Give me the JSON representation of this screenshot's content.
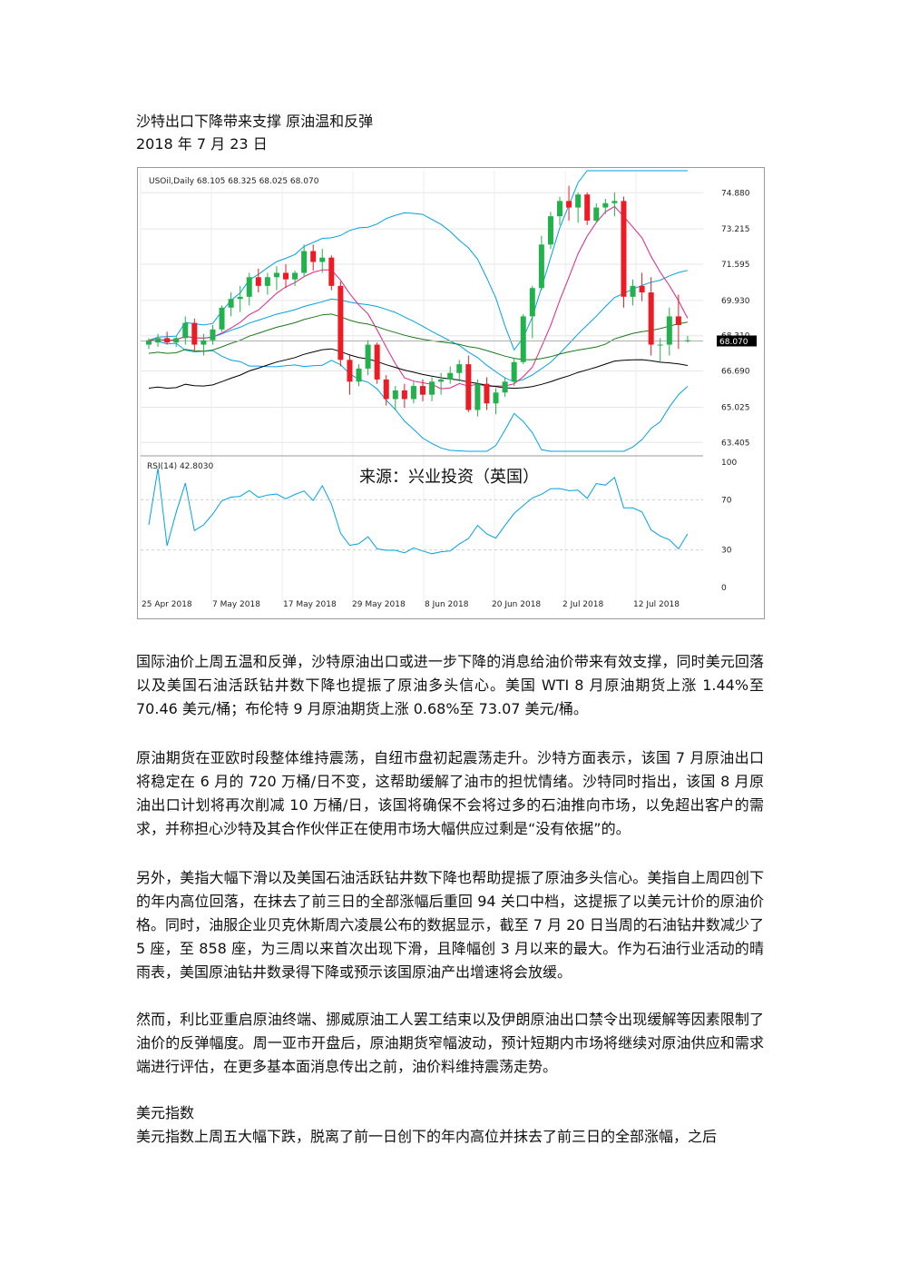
{
  "title": "沙特出口下降带来支撑 原油温和反弹",
  "date": "2018 年 7 月 23 日",
  "chart": {
    "header": "USOil,Daily  68.105 68.325 68.025 68.070",
    "source_note": "来源：兴业投资（英国）",
    "price_labels": [
      "74.880",
      "73.215",
      "71.595",
      "69.930",
      "68.310",
      "66.690",
      "65.025",
      "63.405"
    ],
    "current_price": "68.070",
    "rsi_header": "RSI(14) 42.8030",
    "rsi_labels": [
      "100",
      "70",
      "30",
      "0"
    ],
    "date_labels": [
      "25 Apr 2018",
      "7 May 2018",
      "17 May 2018",
      "29 May 2018",
      "8 Jun 2018",
      "20 Jun 2018",
      "2 Jul 2018",
      "12 Jul 2018"
    ],
    "colors": {
      "up": "#22b14c",
      "down": "#ed1c24",
      "bands": "#00a2e8",
      "ma_short": "#e0218a",
      "ma_mid": "#1a7a1a",
      "ma_long": "#000000",
      "rsi": "#00a2e8"
    }
  },
  "chart_data": {
    "type": "candlestick",
    "symbol": "USOil",
    "timeframe": "Daily",
    "ohlc_last": {
      "open": 68.105,
      "high": 68.325,
      "low": 68.025,
      "close": 68.07
    },
    "y_ticks": [
      74.88,
      73.215,
      71.595,
      69.93,
      68.31,
      66.69,
      65.025,
      63.405
    ],
    "ylim": [
      63.0,
      75.6
    ],
    "x_tick_labels": [
      "25 Apr 2018",
      "7 May 2018",
      "17 May 2018",
      "29 May 2018",
      "8 Jun 2018",
      "20 Jun 2018",
      "2 Jul 2018",
      "12 Jul 2018"
    ],
    "candles": [
      [
        67.9,
        68.2,
        67.7,
        68.1
      ],
      [
        68.0,
        68.4,
        67.8,
        68.2
      ],
      [
        68.2,
        68.5,
        67.9,
        68.0
      ],
      [
        68.0,
        68.3,
        67.8,
        68.2
      ],
      [
        68.2,
        69.2,
        67.9,
        68.9
      ],
      [
        68.9,
        69.1,
        67.6,
        67.9
      ],
      [
        67.9,
        68.4,
        67.4,
        68.1
      ],
      [
        68.1,
        68.8,
        67.9,
        68.6
      ],
      [
        68.6,
        69.7,
        68.5,
        69.6
      ],
      [
        69.6,
        70.3,
        69.2,
        70.0
      ],
      [
        70.0,
        70.6,
        69.4,
        70.1
      ],
      [
        70.1,
        71.2,
        69.7,
        71.0
      ],
      [
        71.0,
        71.4,
        70.3,
        70.6
      ],
      [
        70.6,
        71.2,
        70.2,
        71.0
      ],
      [
        71.0,
        71.5,
        70.4,
        71.2
      ],
      [
        71.2,
        71.6,
        70.5,
        70.9
      ],
      [
        70.9,
        71.3,
        70.6,
        71.2
      ],
      [
        71.2,
        72.5,
        71.0,
        72.2
      ],
      [
        72.2,
        72.5,
        71.3,
        71.7
      ],
      [
        71.7,
        72.3,
        71.2,
        71.9
      ],
      [
        71.9,
        72.0,
        70.4,
        70.6
      ],
      [
        70.6,
        70.8,
        66.9,
        67.2
      ],
      [
        67.2,
        67.4,
        65.6,
        66.2
      ],
      [
        66.2,
        67.0,
        66.0,
        66.8
      ],
      [
        66.8,
        68.1,
        66.5,
        67.9
      ],
      [
        67.9,
        68.0,
        66.1,
        66.3
      ],
      [
        66.3,
        66.5,
        65.1,
        65.4
      ],
      [
        65.4,
        66.0,
        64.9,
        65.8
      ],
      [
        65.8,
        66.1,
        65.0,
        65.4
      ],
      [
        65.4,
        66.2,
        65.2,
        66.0
      ],
      [
        66.0,
        66.3,
        65.3,
        65.6
      ],
      [
        65.6,
        66.4,
        65.3,
        66.2
      ],
      [
        66.2,
        66.6,
        65.6,
        66.3
      ],
      [
        66.3,
        66.9,
        66.1,
        66.6
      ],
      [
        66.6,
        67.2,
        66.2,
        67.0
      ],
      [
        67.0,
        67.4,
        64.8,
        64.9
      ],
      [
        64.9,
        66.3,
        64.6,
        66.1
      ],
      [
        66.1,
        66.4,
        64.9,
        65.2
      ],
      [
        65.2,
        65.9,
        64.7,
        65.7
      ],
      [
        65.7,
        66.4,
        65.5,
        66.2
      ],
      [
        66.2,
        67.3,
        66.0,
        67.1
      ],
      [
        67.1,
        69.3,
        67.0,
        69.2
      ],
      [
        69.2,
        70.6,
        68.2,
        70.5
      ],
      [
        70.5,
        72.9,
        70.4,
        72.5
      ],
      [
        72.5,
        74.0,
        72.3,
        73.8
      ],
      [
        73.8,
        74.7,
        73.4,
        74.5
      ],
      [
        74.5,
        75.2,
        73.6,
        74.2
      ],
      [
        74.2,
        74.9,
        73.5,
        74.8
      ],
      [
        74.8,
        74.9,
        73.4,
        73.6
      ],
      [
        73.6,
        74.4,
        73.5,
        74.2
      ],
      [
        74.2,
        74.6,
        73.9,
        74.4
      ],
      [
        74.4,
        74.9,
        73.8,
        74.5
      ],
      [
        74.5,
        74.7,
        69.6,
        70.1
      ],
      [
        70.1,
        70.9,
        69.7,
        70.6
      ],
      [
        70.6,
        71.2,
        69.9,
        70.3
      ],
      [
        70.3,
        71.0,
        67.4,
        67.9
      ],
      [
        67.9,
        68.2,
        67.1,
        67.9
      ],
      [
        67.9,
        69.6,
        67.4,
        69.2
      ],
      [
        69.2,
        70.2,
        67.7,
        68.8
      ],
      [
        68.1,
        68.3,
        68.0,
        68.1
      ]
    ],
    "rsi": {
      "period": 14,
      "last": 42.803,
      "levels": [
        70,
        30
      ],
      "range": [
        0,
        100
      ]
    }
  },
  "body": {
    "p1": "国际油价上周五温和反弹，沙特原油出口或进一步下降的消息给油价带来有效支撑，同时美元回落以及美国石油活跃钻井数下降也提振了原油多头信心。美国 WTI 8 月原油期货上涨 1.44%至 70.46 美元/桶；布伦特 9 月原油期货上涨 0.68%至 73.07 美元/桶。",
    "p2": "原油期货在亚欧时段整体维持震荡，自纽市盘初起震荡走升。沙特方面表示，该国 7 月原油出口将稳定在 6 月的 720 万桶/日不变，这帮助缓解了油市的担忧情绪。沙特同时指出，该国 8 月原油出口计划将再次削减 10 万桶/日，该国将确保不会将过多的石油推向市场，以免超出客户的需求，并称担心沙特及其合作伙伴正在使用市场大幅供应过剩是“没有依据”的。",
    "p3": "另外，美指大幅下滑以及美国石油活跃钻井数下降也帮助提振了原油多头信心。美指自上周四创下的年内高位回落，在抹去了前三日的全部涨幅后重回 94 关口中档，这提振了以美元计价的原油价格。同时，油服企业贝克休斯周六凌晨公布的数据显示，截至 7 月 20 日当周的石油钻井数减少了 5 座，至 858 座，为三周以来首次出现下滑，且降幅创 3 月以来的最大。作为石油行业活动的晴雨表，美国原油钻井数录得下降或预示该国原油产出增速将会放缓。",
    "p4": "然而，利比亚重启原油终端、挪威原油工人罢工结束以及伊朗原油出口禁令出现缓解等因素限制了油价的反弹幅度。周一亚市开盘后，原油期货窄幅波动，预计短期内市场将继续对原油供应和需求端进行评估，在更多基本面消息传出之前，油价料维持震荡走势。",
    "section_head": "美元指数",
    "p5": "美元指数上周五大幅下跌，脱离了前一日创下的年内高位并抹去了前三日的全部涨幅，之后"
  }
}
